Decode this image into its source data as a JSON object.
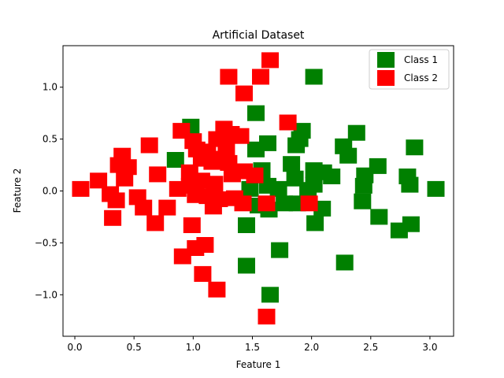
{
  "colors": {
    "class1": "#008000",
    "class2": "#ff0000"
  },
  "chart_data": {
    "type": "scatter",
    "title": "Artificial Dataset",
    "xlabel": "Feature 1",
    "ylabel": "Feature 2",
    "xlim": [
      -0.1,
      3.2
    ],
    "ylim": [
      -1.4,
      1.4
    ],
    "xticks": [
      0.0,
      0.5,
      1.0,
      1.5,
      2.0,
      2.5,
      3.0
    ],
    "xtick_labels": [
      "0.0",
      "0.5",
      "1.0",
      "1.5",
      "2.0",
      "2.5",
      "3.0"
    ],
    "yticks": [
      -1.0,
      -0.5,
      0.0,
      0.5,
      1.0
    ],
    "ytick_labels": [
      "−1.0",
      "−0.5",
      "0.0",
      "0.5",
      "1.0"
    ],
    "grid": false,
    "legend": {
      "position": "upper-right",
      "entries": [
        "Class 1",
        "Class 2"
      ]
    },
    "series": [
      {
        "name": "Class 1",
        "color": "#008000",
        "marker": "square",
        "points": [
          [
            0.98,
            0.62
          ],
          [
            0.85,
            0.3
          ],
          [
            1.53,
            0.75
          ],
          [
            2.02,
            1.1
          ],
          [
            1.92,
            0.58
          ],
          [
            1.9,
            0.5
          ],
          [
            1.63,
            0.46
          ],
          [
            1.53,
            0.4
          ],
          [
            1.87,
            0.44
          ],
          [
            2.38,
            0.56
          ],
          [
            2.27,
            0.43
          ],
          [
            2.31,
            0.34
          ],
          [
            2.87,
            0.42
          ],
          [
            1.58,
            0.2
          ],
          [
            1.83,
            0.26
          ],
          [
            1.86,
            0.12
          ],
          [
            2.02,
            0.2
          ],
          [
            2.1,
            0.18
          ],
          [
            2.17,
            0.14
          ],
          [
            2.02,
            0.06
          ],
          [
            2.45,
            0.15
          ],
          [
            2.56,
            0.24
          ],
          [
            2.81,
            0.14
          ],
          [
            2.83,
            0.06
          ],
          [
            3.05,
            0.02
          ],
          [
            2.44,
            0.05
          ],
          [
            1.48,
            0.02
          ],
          [
            1.63,
            0.05
          ],
          [
            1.72,
            0.02
          ],
          [
            1.77,
            -0.12
          ],
          [
            1.88,
            -0.12
          ],
          [
            1.97,
            0.01
          ],
          [
            1.55,
            -0.14
          ],
          [
            1.64,
            -0.18
          ],
          [
            2.09,
            -0.17
          ],
          [
            2.43,
            -0.1
          ],
          [
            2.57,
            -0.25
          ],
          [
            2.03,
            -0.31
          ],
          [
            1.45,
            -0.33
          ],
          [
            2.74,
            -0.38
          ],
          [
            2.84,
            -0.32
          ],
          [
            1.73,
            -0.57
          ],
          [
            1.45,
            -0.72
          ],
          [
            2.28,
            -0.69
          ],
          [
            1.65,
            -1.0
          ]
        ]
      },
      {
        "name": "Class 2",
        "color": "#ff0000",
        "marker": "square",
        "points": [
          [
            1.3,
            1.1
          ],
          [
            1.57,
            1.1
          ],
          [
            1.65,
            1.26
          ],
          [
            1.43,
            0.94
          ],
          [
            1.8,
            0.66
          ],
          [
            0.63,
            0.44
          ],
          [
            0.4,
            0.34
          ],
          [
            0.37,
            0.25
          ],
          [
            0.45,
            0.23
          ],
          [
            0.42,
            0.12
          ],
          [
            0.2,
            0.1
          ],
          [
            0.05,
            0.02
          ],
          [
            0.3,
            -0.03
          ],
          [
            0.35,
            -0.09
          ],
          [
            0.32,
            -0.26
          ],
          [
            0.53,
            -0.06
          ],
          [
            0.58,
            -0.16
          ],
          [
            0.7,
            0.16
          ],
          [
            0.68,
            -0.31
          ],
          [
            0.78,
            -0.16
          ],
          [
            0.9,
            0.58
          ],
          [
            1.0,
            0.48
          ],
          [
            1.03,
            0.4
          ],
          [
            1.12,
            0.38
          ],
          [
            1.2,
            0.5
          ],
          [
            1.26,
            0.6
          ],
          [
            1.32,
            0.55
          ],
          [
            1.4,
            0.53
          ],
          [
            1.28,
            0.42
          ],
          [
            1.07,
            0.31
          ],
          [
            1.16,
            0.28
          ],
          [
            1.24,
            0.31
          ],
          [
            1.3,
            0.27
          ],
          [
            1.33,
            0.16
          ],
          [
            1.43,
            0.19
          ],
          [
            1.52,
            0.15
          ],
          [
            0.97,
            0.18
          ],
          [
            1.07,
            0.1
          ],
          [
            1.18,
            0.07
          ],
          [
            0.87,
            0.02
          ],
          [
            0.97,
            0.05
          ],
          [
            1.02,
            -0.04
          ],
          [
            1.12,
            -0.05
          ],
          [
            1.22,
            -0.08
          ],
          [
            1.17,
            -0.15
          ],
          [
            1.35,
            -0.07
          ],
          [
            1.42,
            -0.12
          ],
          [
            1.62,
            -0.12
          ],
          [
            1.98,
            -0.12
          ],
          [
            0.99,
            -0.33
          ],
          [
            1.02,
            -0.55
          ],
          [
            1.1,
            -0.52
          ],
          [
            0.91,
            -0.63
          ],
          [
            1.08,
            -0.8
          ],
          [
            1.2,
            -0.95
          ],
          [
            1.62,
            -1.21
          ]
        ]
      }
    ]
  }
}
